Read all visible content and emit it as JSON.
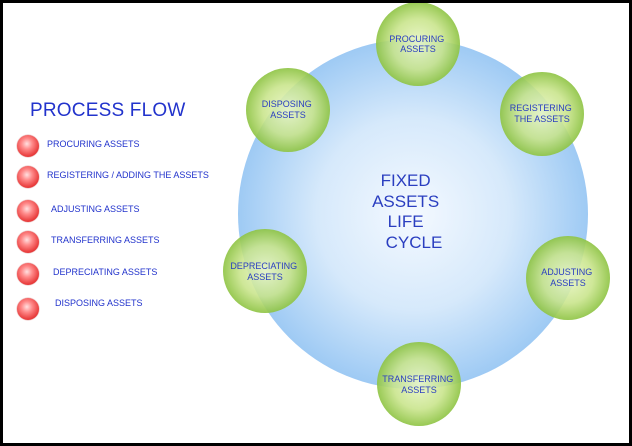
{
  "legend": {
    "title": "PROCESS FLOW",
    "items": [
      "PROCURING ASSETS",
      "REGISTERING / ADDING THE ASSETS",
      "ADJUSTING ASSETS",
      "TRANSFERRING ASSETS",
      "DEPRECIATING ASSETS",
      "DISPOSING ASSETS"
    ]
  },
  "center": {
    "lines": [
      "FIXED",
      "ASSETS",
      "LIFE",
      "CYCLE"
    ]
  },
  "nodes": [
    {
      "id": "procuring",
      "lines": [
        "PROCURING",
        "ASSETS"
      ]
    },
    {
      "id": "registering",
      "lines": [
        "REGISTERING",
        "THE ASSETS"
      ]
    },
    {
      "id": "adjusting",
      "lines": [
        "ADJUSTING",
        "ASSETS"
      ]
    },
    {
      "id": "transferring",
      "lines": [
        "TRANSFERRING",
        "ASSETS"
      ]
    },
    {
      "id": "depreciating",
      "lines": [
        "DEPRECIATING",
        "ASSETS"
      ]
    },
    {
      "id": "disposing",
      "lines": [
        "DISPOSING",
        "ASSETS"
      ]
    }
  ],
  "colors": {
    "text": "#2233cc",
    "big_circle_center": "#f2f8ff",
    "big_circle_edge": "#8ec2f2",
    "node_center": "#e2f2b0",
    "node_edge": "#8cc240",
    "bullet": "#e83a3a"
  }
}
